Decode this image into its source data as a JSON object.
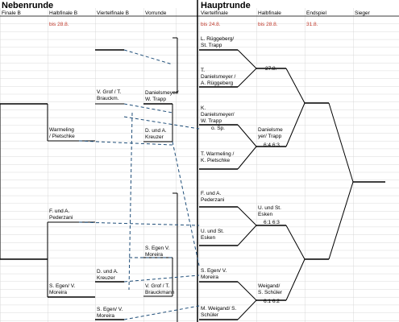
{
  "sections": {
    "left_title": "Nebenrunde",
    "right_title": "Hauptrunde"
  },
  "columns": {
    "finale_b": "Finale B",
    "halbfinale_b": "Halbfinale B",
    "viertelfinale_b": "Viertelfinale B",
    "vorrunde": "Vorrunde",
    "viertelfinale": "Viertelfinale",
    "halbfinale": "Halbfinale",
    "endspiel": "Endspiel",
    "sieger": "Sieger"
  },
  "deadlines": {
    "halbfinale_b": "bis 28.8.",
    "viertelfinale": "bis 24.8.",
    "halbfinale": "bis 28.8.",
    "endspiel": "31.8."
  },
  "colors": {
    "grid": "#d9d9d9",
    "deadline": "#c0392b",
    "line": "#000000",
    "dashed": "#1f4e79"
  },
  "left_bracket": {
    "halbfinale_b": [
      {
        "line1": "Warmeling",
        "line2": "/ Pietschke"
      },
      {
        "line1": "F. und A.",
        "line2": "Pederzani"
      },
      {
        "line1": "S. Egen/ V.",
        "line2": "Moreira"
      }
    ],
    "viertelfinale_b": [
      {
        "line1": "V. Grof / T.",
        "line2": "Brauckm."
      },
      {
        "line1": "D. und A.",
        "line2": "Kreuzer"
      },
      {
        "line1": "S. Egen/ V.",
        "line2": "Moreira"
      }
    ],
    "vorrunde": [
      {
        "line1": "Danielsmeyer/",
        "line2": "W. Trapp"
      },
      {
        "line1": "D. und A.",
        "line2": "Kreuzer"
      },
      {
        "line1": "S. Egen V.",
        "line2": "Moreira"
      },
      {
        "line1": "V. Grof / T.",
        "line2": "Brauckmann"
      }
    ]
  },
  "right_bracket": {
    "viertelfinale": [
      {
        "line1": "L. Rüggeberg/",
        "line2": "St. Trapp"
      },
      {
        "line1": "T.",
        "line2": "Danielsmeyer /",
        "line3": "A. Rüggeberg"
      },
      {
        "line1": "K.",
        "line2": "Danielsmeyer/",
        "line3": "W. Trapp"
      },
      {
        "line1": "T. Warmeling /",
        "line2": "K. Pietschke"
      },
      {
        "line1": "F. und A.",
        "line2": "Pederzani"
      },
      {
        "line1": "U. und St.",
        "line2": "Esken"
      },
      {
        "line1": "S. Egen/ V.",
        "line2": "Moreira"
      },
      {
        "line1": "M. Weigand/ S.",
        "line2": "Schüler"
      }
    ],
    "notes": {
      "o_sp": "o. Sp.",
      "date_27": "27.8."
    },
    "halbfinale": [
      {
        "line1": "Danielsme",
        "line2": "yer/ Trapp",
        "score": "6:4 6:3"
      },
      {
        "line1": "U. und St.",
        "line2": "Esken",
        "score": "6:1 6:3"
      },
      {
        "line1": "Weigand/",
        "line2": "S. Schüler",
        "score": "6:1 6:2"
      }
    ]
  }
}
